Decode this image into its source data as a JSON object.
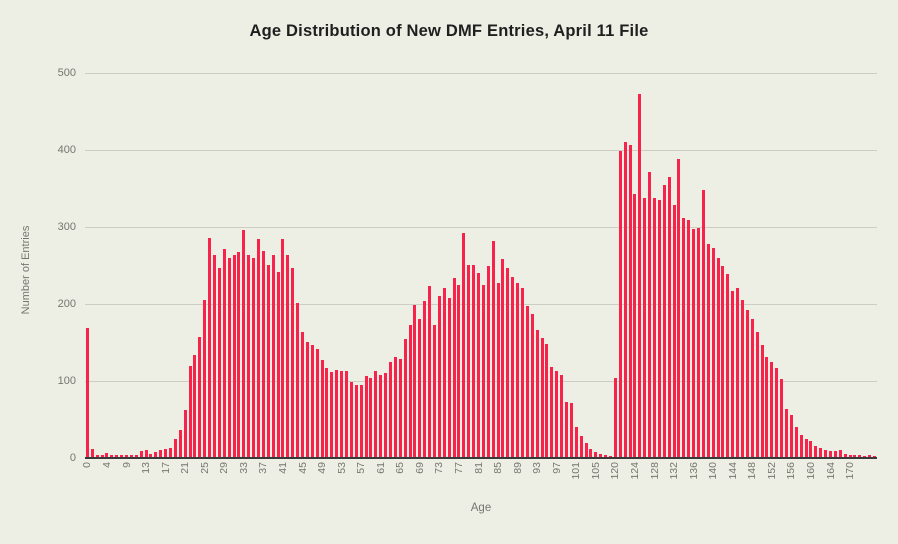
{
  "page": {
    "background_color": "#edeee4"
  },
  "chart_data": {
    "type": "bar",
    "title": "Age Distribution of New DMF Entries, April 11 File",
    "xlabel": "Age",
    "ylabel": "Number of Entries",
    "ylim": [
      0,
      500
    ],
    "y_ticks": [
      0,
      100,
      200,
      300,
      400,
      500
    ],
    "grid": "horizontal",
    "legend": "none",
    "bar_color": "#f8234b",
    "background_color": "#edeee4",
    "x_axis_type": "categorical-ages-present-in-data",
    "x_tick_label_every": 4,
    "x_tick_label_max_index": 156,
    "x_tick_labels_shown": [
      0,
      4,
      9,
      13,
      17,
      21,
      25,
      29,
      33,
      37,
      41,
      45,
      49,
      53,
      57,
      61,
      65,
      69,
      73,
      77,
      81,
      85,
      89,
      93,
      97,
      101,
      105,
      120,
      124,
      128,
      132,
      136,
      140,
      144,
      148,
      152,
      156,
      160,
      164,
      170
    ],
    "bars": [
      [
        0,
        168
      ],
      [
        1,
        10
      ],
      [
        2,
        3
      ],
      [
        3,
        2
      ],
      [
        4,
        5
      ],
      [
        6,
        2
      ],
      [
        7,
        2
      ],
      [
        8,
        3
      ],
      [
        9,
        2
      ],
      [
        10,
        2
      ],
      [
        11,
        3
      ],
      [
        12,
        8
      ],
      [
        13,
        9
      ],
      [
        14,
        4
      ],
      [
        15,
        7
      ],
      [
        16,
        9
      ],
      [
        17,
        10
      ],
      [
        18,
        12
      ],
      [
        19,
        24
      ],
      [
        20,
        35
      ],
      [
        21,
        61
      ],
      [
        22,
        118
      ],
      [
        23,
        133
      ],
      [
        24,
        156
      ],
      [
        25,
        204
      ],
      [
        26,
        285
      ],
      [
        27,
        262
      ],
      [
        28,
        246
      ],
      [
        29,
        270
      ],
      [
        30,
        258
      ],
      [
        31,
        262
      ],
      [
        32,
        266
      ],
      [
        33,
        295
      ],
      [
        34,
        262
      ],
      [
        35,
        258
      ],
      [
        36,
        283
      ],
      [
        37,
        268
      ],
      [
        38,
        249
      ],
      [
        39,
        262
      ],
      [
        40,
        240
      ],
      [
        41,
        283
      ],
      [
        42,
        262
      ],
      [
        43,
        245
      ],
      [
        44,
        200
      ],
      [
        45,
        163
      ],
      [
        46,
        150
      ],
      [
        47,
        146
      ],
      [
        48,
        140
      ],
      [
        49,
        126
      ],
      [
        50,
        116
      ],
      [
        51,
        110
      ],
      [
        52,
        113
      ],
      [
        53,
        112
      ],
      [
        54,
        112
      ],
      [
        55,
        97
      ],
      [
        56,
        94
      ],
      [
        57,
        93
      ],
      [
        58,
        105
      ],
      [
        59,
        102
      ],
      [
        60,
        112
      ],
      [
        61,
        106
      ],
      [
        62,
        109
      ],
      [
        63,
        124
      ],
      [
        64,
        130
      ],
      [
        65,
        127
      ],
      [
        66,
        153
      ],
      [
        67,
        171
      ],
      [
        68,
        198
      ],
      [
        69,
        179
      ],
      [
        70,
        203
      ],
      [
        71,
        222
      ],
      [
        72,
        172
      ],
      [
        73,
        209
      ],
      [
        74,
        219
      ],
      [
        75,
        206
      ],
      [
        76,
        233
      ],
      [
        77,
        224
      ],
      [
        78,
        291
      ],
      [
        79,
        250
      ],
      [
        80,
        250
      ],
      [
        81,
        239
      ],
      [
        82,
        224
      ],
      [
        83,
        248
      ],
      [
        84,
        281
      ],
      [
        85,
        226
      ],
      [
        86,
        257
      ],
      [
        87,
        246
      ],
      [
        88,
        234
      ],
      [
        89,
        226
      ],
      [
        90,
        220
      ],
      [
        91,
        196
      ],
      [
        92,
        186
      ],
      [
        93,
        165
      ],
      [
        94,
        154
      ],
      [
        95,
        147
      ],
      [
        96,
        117
      ],
      [
        97,
        112
      ],
      [
        98,
        107
      ],
      [
        99,
        71
      ],
      [
        100,
        70
      ],
      [
        101,
        39
      ],
      [
        102,
        27
      ],
      [
        103,
        18
      ],
      [
        104,
        11
      ],
      [
        105,
        7
      ],
      [
        106,
        4
      ],
      [
        107,
        2
      ],
      [
        109,
        1
      ],
      [
        120,
        102
      ],
      [
        121,
        397
      ],
      [
        122,
        409
      ],
      [
        123,
        405
      ],
      [
        124,
        341
      ],
      [
        125,
        472
      ],
      [
        126,
        336
      ],
      [
        127,
        370
      ],
      [
        128,
        337
      ],
      [
        129,
        334
      ],
      [
        130,
        353
      ],
      [
        131,
        364
      ],
      [
        132,
        327
      ],
      [
        133,
        387
      ],
      [
        134,
        310
      ],
      [
        135,
        308
      ],
      [
        136,
        296
      ],
      [
        137,
        297
      ],
      [
        138,
        347
      ],
      [
        139,
        277
      ],
      [
        140,
        272
      ],
      [
        141,
        258
      ],
      [
        142,
        248
      ],
      [
        143,
        238
      ],
      [
        144,
        216
      ],
      [
        145,
        219
      ],
      [
        146,
        204
      ],
      [
        147,
        191
      ],
      [
        148,
        179
      ],
      [
        149,
        163
      ],
      [
        150,
        146
      ],
      [
        151,
        130
      ],
      [
        152,
        124
      ],
      [
        153,
        116
      ],
      [
        154,
        101
      ],
      [
        155,
        63
      ],
      [
        156,
        55
      ],
      [
        157,
        39
      ],
      [
        158,
        29
      ],
      [
        159,
        23
      ],
      [
        160,
        21
      ],
      [
        161,
        14
      ],
      [
        162,
        12
      ],
      [
        163,
        9
      ],
      [
        164,
        8
      ],
      [
        165,
        8
      ],
      [
        166,
        9
      ],
      [
        168,
        4
      ],
      [
        170,
        2
      ],
      [
        171,
        3
      ],
      [
        172,
        2
      ],
      [
        173,
        1
      ],
      [
        174,
        2
      ],
      [
        175,
        1
      ]
    ]
  }
}
